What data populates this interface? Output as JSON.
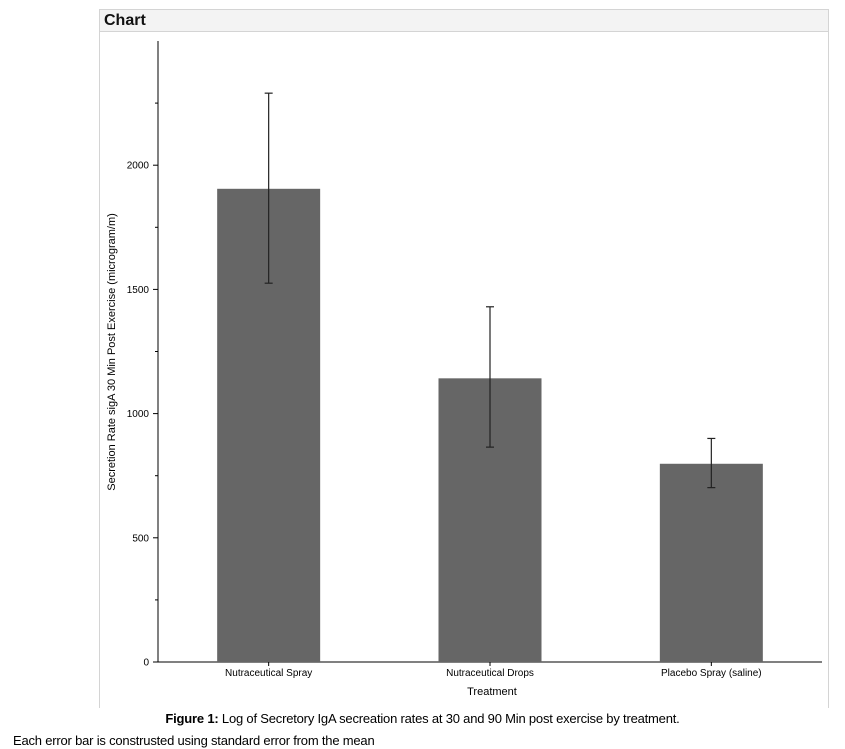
{
  "panel": {
    "title": "Chart"
  },
  "chart_data": {
    "type": "bar",
    "categories": [
      "Nutraceutical Spray",
      "Nutraceutical Drops",
      "Placebo Spray (saline)"
    ],
    "values": [
      1905,
      1142,
      798
    ],
    "error_low": [
      1525,
      865,
      702
    ],
    "error_high": [
      2290,
      1430,
      900
    ],
    "xlabel": "Treatment",
    "ylabel": "Secretion Rate sigA 30 Min Post Exercise (microgram/m)",
    "ylim": [
      0,
      2250
    ],
    "yticks": [
      0,
      500,
      1000,
      1500,
      2000
    ],
    "yticks_minor": [
      250,
      750,
      1250,
      1750,
      2250
    ],
    "grid": false,
    "bar_color": "#666666",
    "error_color": "#222222"
  },
  "caption": {
    "label": "Figure 1:",
    "text": " Log of Secretory IgA secreation rates at 30 and 90 Min post exercise by treatment."
  },
  "note": "Each error bar is construsted using standard error from the mean"
}
